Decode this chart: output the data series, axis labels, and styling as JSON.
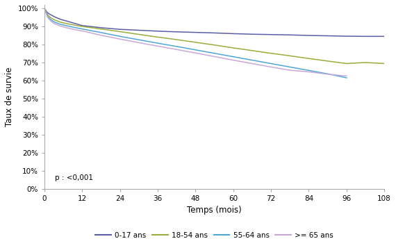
{
  "title": "",
  "xlabel": "Temps (mois)",
  "ylabel": "Taux de survie",
  "pvalue_text": "p : <0,001",
  "xlim": [
    0,
    108
  ],
  "ylim": [
    0.0,
    1.02
  ],
  "xticks": [
    0,
    12,
    24,
    36,
    48,
    60,
    72,
    84,
    96,
    108
  ],
  "yticks": [
    0.0,
    0.1,
    0.2,
    0.3,
    0.4,
    0.5,
    0.6,
    0.7,
    0.8,
    0.9,
    1.0
  ],
  "ytick_labels": [
    "0%",
    "10%",
    "20%",
    "30%",
    "40%",
    "50%",
    "60%",
    "70%",
    "80%",
    "90%",
    "100%"
  ],
  "series": {
    "0-17 ans": {
      "color": "#5b5ea6",
      "x": [
        0,
        1,
        2,
        3,
        5,
        7,
        10,
        12,
        18,
        24,
        30,
        36,
        42,
        48,
        54,
        60,
        66,
        72,
        78,
        84,
        90,
        96,
        102,
        108
      ],
      "y": [
        1.0,
        0.975,
        0.965,
        0.955,
        0.94,
        0.93,
        0.915,
        0.905,
        0.893,
        0.884,
        0.879,
        0.874,
        0.87,
        0.867,
        0.864,
        0.86,
        0.857,
        0.855,
        0.853,
        0.85,
        0.848,
        0.846,
        0.845,
        0.845
      ]
    },
    "18-54 ans": {
      "color": "#9aac3a",
      "x": [
        0,
        1,
        2,
        3,
        5,
        7,
        10,
        12,
        18,
        24,
        30,
        36,
        42,
        48,
        54,
        60,
        66,
        72,
        78,
        84,
        90,
        96,
        102,
        108
      ],
      "y": [
        1.0,
        0.965,
        0.948,
        0.938,
        0.924,
        0.916,
        0.906,
        0.9,
        0.886,
        0.871,
        0.856,
        0.841,
        0.827,
        0.812,
        0.797,
        0.781,
        0.766,
        0.751,
        0.737,
        0.722,
        0.708,
        0.694,
        0.7,
        0.694
      ]
    },
    "55-64 ans": {
      "color": "#4da6d8",
      "x": [
        0,
        1,
        2,
        3,
        5,
        7,
        10,
        12,
        18,
        24,
        30,
        36,
        42,
        48,
        54,
        60,
        66,
        72,
        78,
        84,
        90,
        96
      ],
      "y": [
        1.0,
        0.955,
        0.938,
        0.926,
        0.912,
        0.904,
        0.893,
        0.886,
        0.866,
        0.845,
        0.826,
        0.807,
        0.789,
        0.77,
        0.751,
        0.732,
        0.713,
        0.694,
        0.675,
        0.656,
        0.637,
        0.615
      ]
    },
    ">= 65 ans": {
      "color": "#c8a8d8",
      "x": [
        0,
        1,
        2,
        3,
        5,
        7,
        10,
        12,
        18,
        24,
        30,
        36,
        42,
        48,
        54,
        60,
        66,
        72,
        78,
        84,
        90,
        96
      ],
      "y": [
        1.0,
        0.95,
        0.93,
        0.917,
        0.902,
        0.893,
        0.881,
        0.875,
        0.851,
        0.83,
        0.81,
        0.791,
        0.772,
        0.753,
        0.733,
        0.713,
        0.694,
        0.675,
        0.657,
        0.648,
        0.635,
        0.625
      ]
    }
  },
  "legend_labels": [
    "0-17 ans",
    "18-54 ans",
    "55-64 ans",
    ">= 65 ans"
  ],
  "legend_colors": [
    "#5b5ea6",
    "#9aac3a",
    "#4da6d8",
    "#c8a8d8"
  ],
  "background_color": "#ffffff"
}
